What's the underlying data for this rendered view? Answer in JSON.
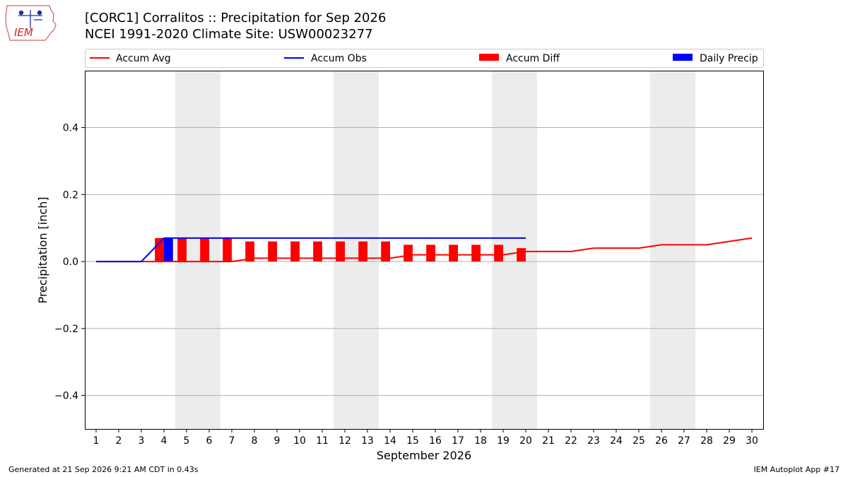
{
  "logo": {
    "text": "IEM"
  },
  "header": {
    "title_line1": "[CORC1] Corralitos :: Precipitation for Sep 2026",
    "title_line2": "NCEI 1991-2020 Climate Site: USW00023277"
  },
  "footer": {
    "left": "Generated at 21 Sep 2026 9:21 AM CDT in 0.43s",
    "right": "IEM Autoplot App #17"
  },
  "chart_data": {
    "type": "bar",
    "xlabel": "September 2026",
    "ylabel": "Precipitation [inch]",
    "xlim": [
      0.5,
      30.5
    ],
    "ylim": [
      -0.5,
      0.57
    ],
    "x_ticks": [
      1,
      2,
      3,
      4,
      5,
      6,
      7,
      8,
      9,
      10,
      11,
      12,
      13,
      14,
      15,
      16,
      17,
      18,
      19,
      20,
      21,
      22,
      23,
      24,
      25,
      26,
      27,
      28,
      29,
      30
    ],
    "y_ticks": [
      -0.4,
      -0.2,
      0.0,
      0.2,
      0.4
    ],
    "y_tick_labels": [
      "−0.4",
      "−0.2",
      "0.0",
      "0.2",
      "0.4"
    ],
    "grid": "horizontal",
    "weekend_shading": [
      [
        4.5,
        6.5
      ],
      [
        11.5,
        13.5
      ],
      [
        18.5,
        20.5
      ],
      [
        25.5,
        27.5
      ]
    ],
    "legend_position": "top",
    "colors": {
      "accum_avg": "#ff0000",
      "accum_obs": "#0000ff",
      "accum_diff": "#ff0000",
      "daily_precip": "#0000ff",
      "shading": "#ececec",
      "grid": "#b0b0b0"
    },
    "series": [
      {
        "name": "Accum Avg",
        "kind": "line",
        "x": [
          1,
          2,
          3,
          4,
          5,
          6,
          7,
          8,
          9,
          10,
          11,
          12,
          13,
          14,
          15,
          16,
          17,
          18,
          19,
          20,
          21,
          22,
          23,
          24,
          25,
          26,
          27,
          28,
          29,
          30
        ],
        "values": [
          0,
          0,
          0,
          0,
          0,
          0,
          0,
          0.01,
          0.01,
          0.01,
          0.01,
          0.01,
          0.01,
          0.01,
          0.02,
          0.02,
          0.02,
          0.02,
          0.02,
          0.03,
          0.03,
          0.03,
          0.04,
          0.04,
          0.04,
          0.05,
          0.05,
          0.05,
          0.06,
          0.07
        ]
      },
      {
        "name": "Accum Obs",
        "kind": "line",
        "x": [
          1,
          2,
          3,
          4,
          5,
          6,
          7,
          8,
          9,
          10,
          11,
          12,
          13,
          14,
          15,
          16,
          17,
          18,
          19,
          20
        ],
        "values": [
          0,
          0,
          0,
          0.07,
          0.07,
          0.07,
          0.07,
          0.07,
          0.07,
          0.07,
          0.07,
          0.07,
          0.07,
          0.07,
          0.07,
          0.07,
          0.07,
          0.07,
          0.07,
          0.07
        ]
      },
      {
        "name": "Accum Diff",
        "kind": "bar",
        "x": [
          4,
          5,
          6,
          7,
          8,
          9,
          10,
          11,
          12,
          13,
          14,
          15,
          16,
          17,
          18,
          19,
          20
        ],
        "values": [
          0.07,
          0.07,
          0.07,
          0.07,
          0.06,
          0.06,
          0.06,
          0.06,
          0.06,
          0.06,
          0.06,
          0.05,
          0.05,
          0.05,
          0.05,
          0.05,
          0.04
        ]
      },
      {
        "name": "Daily Precip",
        "kind": "bar",
        "x": [
          4
        ],
        "values": [
          0.07
        ]
      }
    ]
  }
}
